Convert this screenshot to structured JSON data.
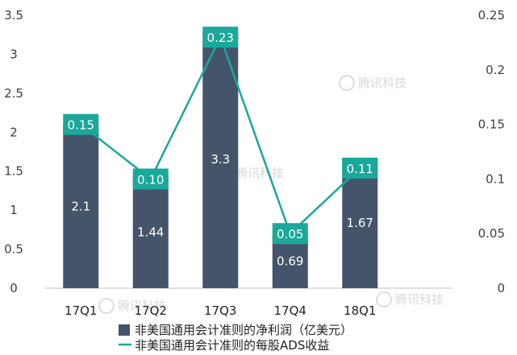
{
  "chart_data": {
    "type": "bar",
    "categories": [
      "17Q1",
      "17Q2",
      "17Q3",
      "17Q4",
      "18Q1"
    ],
    "series": [
      {
        "name": "非美国通用会计准则的净利润（亿美元）",
        "type": "bar",
        "axis": "left",
        "values": [
          2.1,
          1.44,
          3.3,
          0.69,
          1.67
        ],
        "labels": [
          "2.1",
          "1.44",
          "3.3",
          "0.69",
          "1.67"
        ],
        "color": "#44546a"
      },
      {
        "name": "非美国通用会计准则的每股ADS收益",
        "type": "line",
        "axis": "right",
        "values": [
          0.15,
          0.1,
          0.23,
          0.05,
          0.11
        ],
        "labels": [
          "0.15",
          "0.10",
          "0.23",
          "0.05",
          "0.11"
        ],
        "color": "#1aa89a"
      }
    ],
    "y_left": {
      "min": 0,
      "max": 3.5,
      "ticks": [
        "0",
        "0.5",
        "1",
        "1.5",
        "2",
        "2.5",
        "3",
        "3.5"
      ]
    },
    "y_right": {
      "min": 0,
      "max": 0.25,
      "ticks": [
        "0",
        "0.05",
        "0.1",
        "0.15",
        "0.2",
        "0.25"
      ]
    },
    "legend_placement": "bottom",
    "grid": false,
    "watermark": "腾讯科技"
  }
}
